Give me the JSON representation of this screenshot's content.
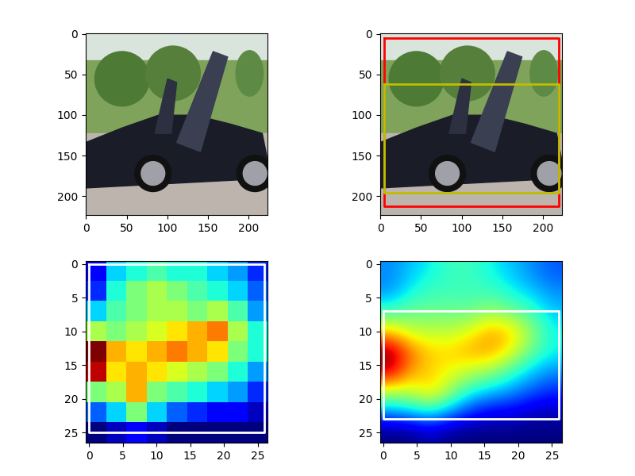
{
  "chart_data": [
    {
      "type": "image",
      "xlim": [
        -0.5,
        223.5
      ],
      "ylim": [
        223.5,
        -0.5
      ],
      "xticks": [
        0,
        50,
        100,
        150,
        200
      ],
      "yticks": [
        0,
        50,
        100,
        150,
        200
      ],
      "boxes": []
    },
    {
      "type": "image",
      "xlim": [
        -0.5,
        223.5
      ],
      "ylim": [
        223.5,
        -0.5
      ],
      "xticks": [
        0,
        50,
        100,
        150,
        200
      ],
      "yticks": [
        0,
        50,
        100,
        150,
        200
      ],
      "boxes": [
        {
          "x": [
            5,
            220
          ],
          "y": [
            5,
            212
          ],
          "color": "#ff0000"
        },
        {
          "x": [
            5,
            220
          ],
          "y": [
            62,
            196
          ],
          "color": "#bfbf00"
        }
      ]
    },
    {
      "type": "heatmap",
      "xlim": [
        -0.5,
        26.5
      ],
      "ylim": [
        26.5,
        -0.5
      ],
      "xticks": [
        0,
        5,
        10,
        15,
        20,
        25
      ],
      "yticks": [
        0,
        5,
        10,
        15,
        20,
        25
      ],
      "cells": [
        [
          0.15,
          0.35,
          0.4,
          0.45,
          0.4,
          0.4,
          0.35,
          0.3,
          0.2
        ],
        [
          0.2,
          0.4,
          0.5,
          0.55,
          0.5,
          0.45,
          0.4,
          0.35,
          0.25
        ],
        [
          0.35,
          0.45,
          0.5,
          0.55,
          0.55,
          0.5,
          0.55,
          0.45,
          0.3
        ],
        [
          0.55,
          0.5,
          0.55,
          0.6,
          0.65,
          0.7,
          0.75,
          0.55,
          0.4
        ],
        [
          0.95,
          0.7,
          0.65,
          0.7,
          0.75,
          0.7,
          0.65,
          0.5,
          0.4
        ],
        [
          0.9,
          0.65,
          0.7,
          0.65,
          0.6,
          0.55,
          0.5,
          0.4,
          0.3
        ],
        [
          0.5,
          0.55,
          0.7,
          0.5,
          0.45,
          0.4,
          0.35,
          0.3,
          0.2
        ],
        [
          0.25,
          0.35,
          0.5,
          0.35,
          0.25,
          0.2,
          0.15,
          0.15,
          0.1
        ],
        [
          0.05,
          0.1,
          0.15,
          0.1,
          0.05,
          0.05,
          0.05,
          0.05,
          0.05
        ]
      ],
      "boxes": [
        {
          "x": [
            0,
            26
          ],
          "y": [
            0,
            25
          ],
          "color": "#ffffff"
        }
      ]
    },
    {
      "type": "heatmap",
      "xlim": [
        -0.5,
        26.5
      ],
      "ylim": [
        26.5,
        -0.5
      ],
      "xticks": [
        0,
        5,
        10,
        15,
        20,
        25
      ],
      "yticks": [
        0,
        5,
        10,
        15,
        20,
        25
      ],
      "cells": [
        [
          0.3,
          0.35,
          0.4,
          0.45,
          0.45,
          0.4,
          0.35,
          0.3,
          0.25
        ],
        [
          0.3,
          0.4,
          0.45,
          0.45,
          0.45,
          0.45,
          0.4,
          0.35,
          0.3
        ],
        [
          0.45,
          0.5,
          0.5,
          0.5,
          0.5,
          0.55,
          0.5,
          0.45,
          0.35
        ],
        [
          0.7,
          0.6,
          0.6,
          0.6,
          0.65,
          0.75,
          0.7,
          0.55,
          0.4
        ],
        [
          1.0,
          0.8,
          0.7,
          0.7,
          0.75,
          0.75,
          0.65,
          0.5,
          0.4
        ],
        [
          0.95,
          0.75,
          0.7,
          0.65,
          0.6,
          0.55,
          0.45,
          0.35,
          0.3
        ],
        [
          0.6,
          0.6,
          0.7,
          0.55,
          0.4,
          0.35,
          0.3,
          0.25,
          0.2
        ],
        [
          0.3,
          0.35,
          0.4,
          0.3,
          0.2,
          0.15,
          0.15,
          0.1,
          0.1
        ],
        [
          0.05,
          0.05,
          0.1,
          0.05,
          0.05,
          0.05,
          0.05,
          0.05,
          0.05
        ]
      ],
      "boxes": [
        {
          "x": [
            0,
            26
          ],
          "y": [
            7,
            23
          ],
          "color": "#ffffff"
        }
      ]
    }
  ]
}
